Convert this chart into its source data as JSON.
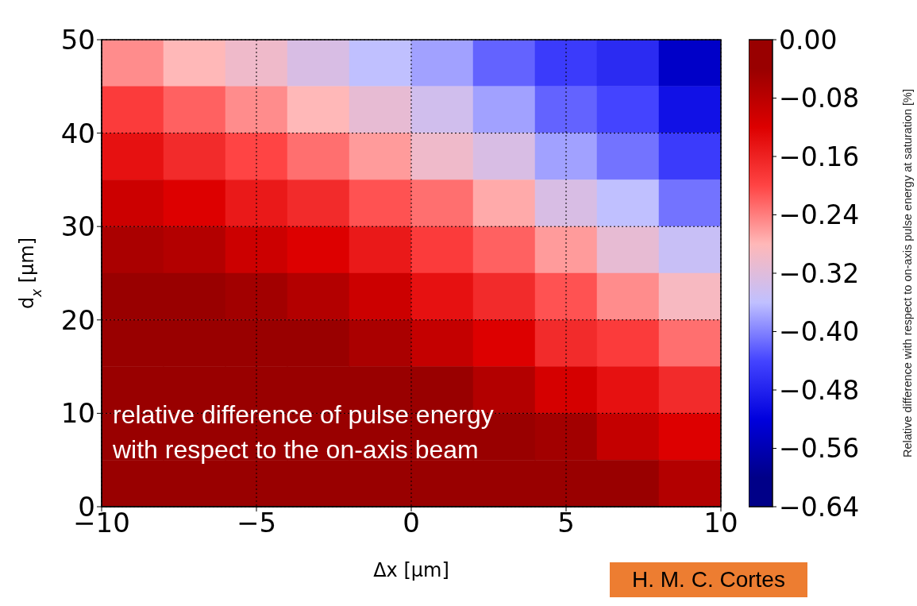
{
  "chart_data": {
    "type": "heatmap",
    "xlabel": "Δx [μm]",
    "ylabel": "d$_{x}$ [μm]",
    "clabel": "Relative difference with respect to on-axis pulse energy at saturation [%]",
    "x": [
      -9,
      -7,
      -5,
      -3,
      -1,
      1,
      3,
      5,
      7,
      9
    ],
    "y": [
      47.5,
      42.5,
      37.5,
      32.5,
      27.5,
      22.5,
      17.5,
      12.5,
      7.5,
      2.5
    ],
    "xlim": [
      -10,
      10
    ],
    "xticks": [
      {
        "value": -10,
        "label": "−10"
      },
      {
        "value": -5,
        "label": "−5"
      },
      0,
      5,
      10
    ],
    "ylim": [
      0,
      50
    ],
    "yticks": [
      0,
      10,
      20,
      30,
      40,
      50
    ],
    "grid": true,
    "clim": [
      -0.64,
      0
    ],
    "cticks": [
      {
        "value": 0,
        "label": "0.00"
      },
      {
        "value": -0.08,
        "label": "−0.08"
      },
      {
        "value": -0.16,
        "label": "−0.16"
      },
      {
        "value": -0.24,
        "label": "−0.24"
      },
      {
        "value": -0.32,
        "label": "−0.32"
      },
      {
        "value": -0.4,
        "label": "−0.40"
      },
      {
        "value": -0.48,
        "label": "−0.48"
      },
      {
        "value": -0.56,
        "label": "−0.56"
      },
      {
        "value": -0.64,
        "label": "−0.64"
      }
    ],
    "colors": [
      "#990000",
      "#dd0000",
      "#ff4444",
      "#ffb8b8",
      "#c0c0ff",
      "#4444ff",
      "#0000dd",
      "#000088"
    ],
    "cells": [
      [
        -0.25,
        -0.28,
        -0.3,
        -0.33,
        -0.36,
        -0.38,
        -0.42,
        -0.45,
        -0.47,
        -0.54
      ],
      [
        -0.19,
        -0.22,
        -0.25,
        -0.28,
        -0.31,
        -0.34,
        -0.38,
        -0.42,
        -0.44,
        -0.5
      ],
      [
        -0.14,
        -0.17,
        -0.2,
        -0.23,
        -0.26,
        -0.3,
        -0.33,
        -0.38,
        -0.41,
        -0.45
      ],
      [
        -0.1,
        -0.12,
        -0.15,
        -0.17,
        -0.21,
        -0.23,
        -0.27,
        -0.33,
        -0.36,
        -0.41
      ],
      [
        -0.06,
        -0.07,
        -0.1,
        -0.12,
        -0.15,
        -0.19,
        -0.22,
        -0.26,
        -0.31,
        -0.35
      ],
      [
        -0.01,
        -0.03,
        -0.05,
        -0.07,
        -0.1,
        -0.14,
        -0.17,
        -0.21,
        -0.25,
        -0.29
      ],
      [
        -0.01,
        -0.01,
        -0.01,
        -0.03,
        -0.06,
        -0.09,
        -0.12,
        -0.17,
        -0.19,
        -0.23
      ],
      [
        -0.01,
        -0.01,
        -0.01,
        -0.01,
        -0.01,
        -0.04,
        -0.07,
        -0.11,
        -0.14,
        -0.17
      ],
      [
        -0.01,
        -0.01,
        -0.01,
        -0.01,
        -0.01,
        -0.01,
        -0.02,
        -0.05,
        -0.09,
        -0.12
      ],
      [
        -0.01,
        -0.01,
        -0.01,
        -0.01,
        -0.01,
        -0.01,
        -0.01,
        -0.01,
        -0.04,
        -0.07
      ]
    ],
    "annotations": [
      "relative difference of pulse energy\nwith respect to the on-axis beam",
      "H. M. C. Cortes"
    ]
  }
}
